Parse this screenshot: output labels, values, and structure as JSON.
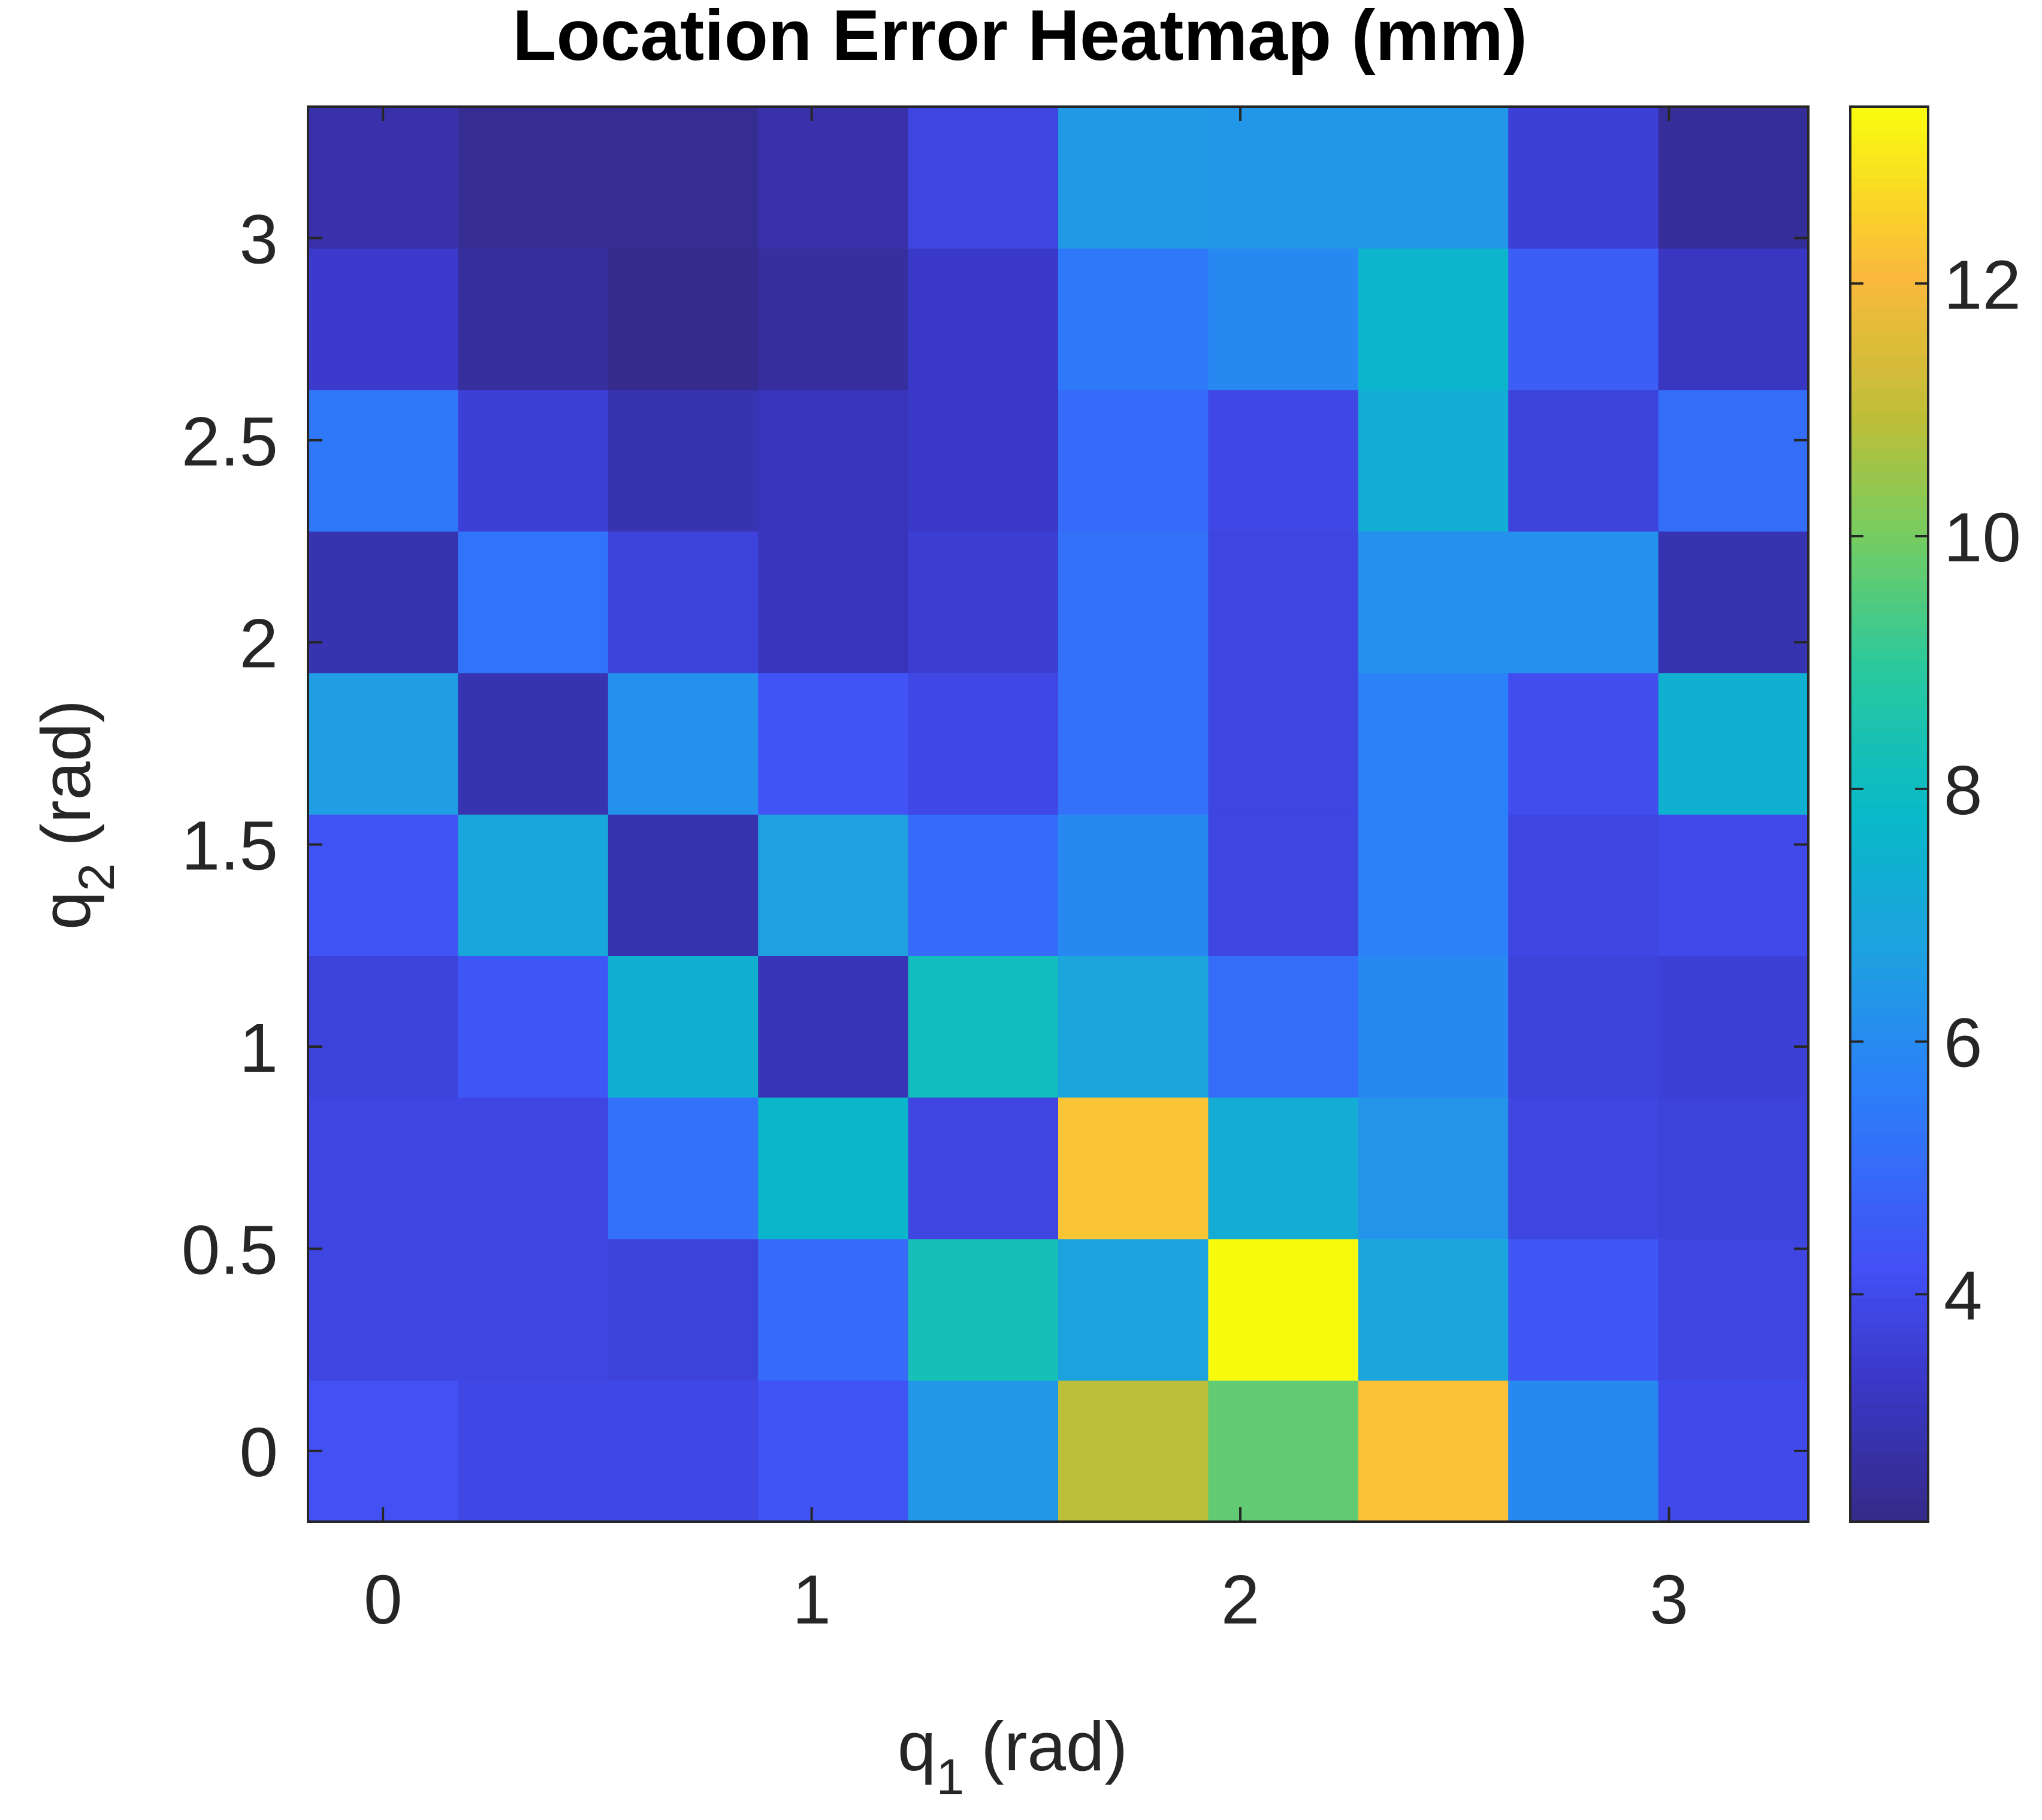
{
  "chart_data": {
    "type": "heatmap",
    "title": "Location Error Heatmap (mm)",
    "xlabel": "q",
    "xlabel_sub": "1",
    "xlabel_unit": "(rad)",
    "ylabel": "q",
    "ylabel_sub": "2",
    "ylabel_unit": "(rad)",
    "x": [
      0,
      0.35,
      0.7,
      1.05,
      1.4,
      1.75,
      2.1,
      2.45,
      2.8,
      3.15
    ],
    "y": [
      0,
      0.35,
      0.7,
      1.05,
      1.4,
      1.75,
      2.1,
      2.45,
      2.8,
      3.15
    ],
    "xlim": [
      -0.175,
      3.325
    ],
    "ylim": [
      -0.175,
      3.325
    ],
    "xticks": [
      0,
      1,
      2,
      3
    ],
    "xtick_labels": [
      "0",
      "1",
      "2",
      "3"
    ],
    "yticks": [
      0,
      0.5,
      1,
      1.5,
      2,
      2.5,
      3
    ],
    "ytick_labels": [
      "0",
      "0.5",
      "1",
      "1.5",
      "2",
      "2.5",
      "3"
    ],
    "values": [
      [
        4.2,
        3.9,
        3.9,
        4.3,
        6.4,
        10.9,
        9.7,
        12.2,
        5.9,
        4.0
      ],
      [
        3.8,
        3.8,
        3.7,
        5.0,
        8.3,
        6.8,
        13.4,
        6.9,
        4.4,
        3.8
      ],
      [
        3.8,
        3.8,
        5.2,
        7.7,
        3.8,
        12.3,
        7.2,
        6.3,
        3.8,
        3.7
      ],
      [
        3.7,
        4.4,
        7.4,
        3.0,
        8.1,
        6.9,
        5.1,
        5.9,
        3.7,
        3.6
      ],
      [
        4.3,
        7.0,
        2.9,
        6.7,
        5.0,
        5.9,
        3.8,
        5.7,
        3.8,
        4.0
      ],
      [
        6.6,
        2.9,
        6.2,
        4.3,
        3.9,
        5.2,
        3.8,
        5.7,
        4.1,
        7.4
      ],
      [
        2.9,
        5.3,
        3.7,
        3.1,
        3.5,
        5.2,
        3.8,
        6.2,
        6.2,
        2.9
      ],
      [
        5.4,
        3.6,
        2.9,
        3.1,
        3.3,
        5.0,
        3.9,
        7.3,
        3.7,
        5.1
      ],
      [
        3.4,
        2.6,
        2.3,
        2.6,
        3.3,
        5.4,
        5.9,
        7.6,
        4.6,
        3.2
      ],
      [
        2.8,
        2.4,
        2.4,
        2.8,
        3.8,
        6.5,
        6.4,
        6.4,
        3.6,
        2.5
      ]
    ],
    "colorbar": {
      "min": 2.2,
      "max": 13.4,
      "ticks": [
        4,
        6,
        8,
        10,
        12
      ],
      "tick_labels": [
        "4",
        "6",
        "8",
        "10",
        "12"
      ],
      "colormap": "parula"
    },
    "grid": false,
    "legend": "none"
  }
}
